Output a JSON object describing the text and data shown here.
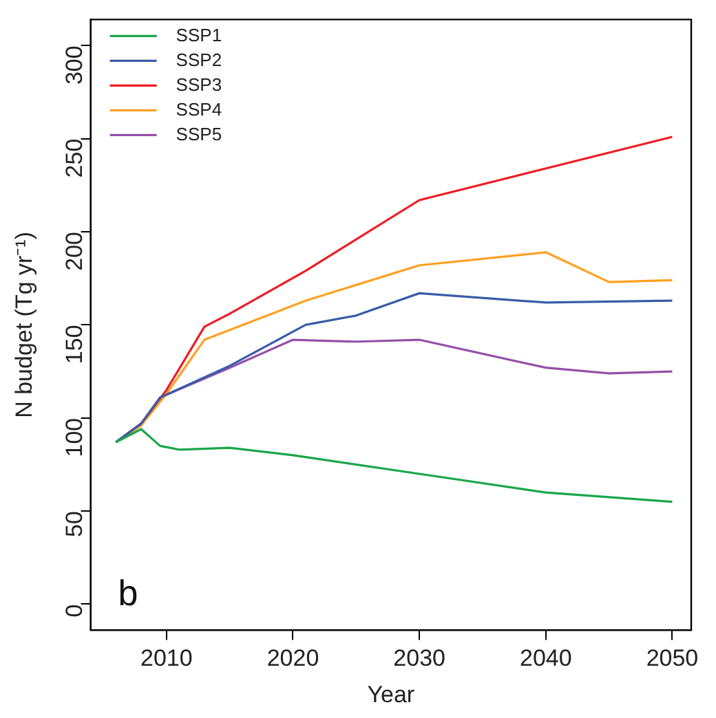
{
  "chart_data": {
    "type": "line",
    "xlabel": "Year",
    "ylabel": "N budget (Tg yr⁻¹)",
    "xlim": [
      2004,
      2051.5
    ],
    "xticks": [
      2010,
      2020,
      2030,
      2040,
      2050
    ],
    "ylim": [
      -14,
      314
    ],
    "yticks": [
      0,
      50,
      100,
      150,
      200,
      250,
      300
    ],
    "grid": false,
    "legend": "top left",
    "marker": "none",
    "line_style": "solid",
    "annotations": [
      "b"
    ],
    "series": [
      {
        "name": "SSP1",
        "color": "#1aa64a",
        "x": [
          2006,
          2008,
          2009.5,
          2011,
          2015,
          2020,
          2030,
          2040,
          2050
        ],
        "values": [
          87,
          94,
          85,
          83,
          84,
          80,
          70,
          60,
          55
        ]
      },
      {
        "name": "SSP2",
        "color": "#3a5ca8",
        "x": [
          2006,
          2008,
          2009.5,
          2015,
          2021,
          2025,
          2030,
          2040,
          2050
        ],
        "values": [
          87,
          97,
          111,
          128,
          150,
          155,
          167,
          162,
          163
        ]
      },
      {
        "name": "SSP3",
        "color": "#ee1c24",
        "x": [
          2006,
          2008,
          2010,
          2013,
          2015,
          2021,
          2030,
          2050
        ],
        "values": [
          87,
          97,
          115,
          149,
          156,
          179,
          217,
          251
        ]
      },
      {
        "name": "SSP4",
        "color": "#ffa020",
        "x": [
          2006,
          2008,
          2010,
          2013,
          2021,
          2030,
          2040,
          2045,
          2050
        ],
        "values": [
          87,
          96,
          113,
          142,
          163,
          182,
          189,
          173,
          174
        ]
      },
      {
        "name": "SSP5",
        "color": "#9450a8",
        "x": [
          2006,
          2008,
          2009.5,
          2015,
          2020,
          2025,
          2030,
          2040,
          2045,
          2050
        ],
        "values": [
          87,
          97,
          111,
          127,
          142,
          141,
          142,
          127,
          124,
          125
        ]
      }
    ]
  }
}
